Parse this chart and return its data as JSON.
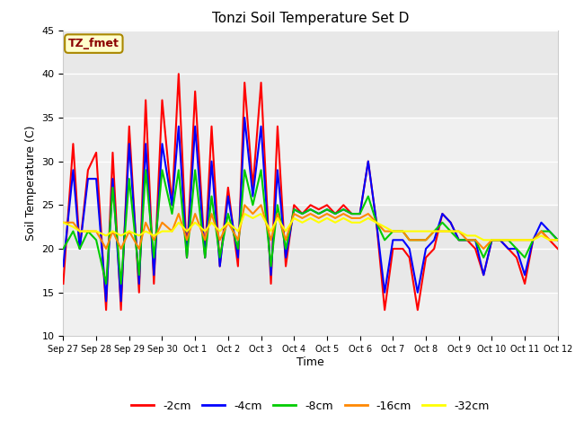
{
  "title": "Tonzi Soil Temperature Set D",
  "xlabel": "Time",
  "ylabel": "Soil Temperature (C)",
  "ylim": [
    10,
    45
  ],
  "xlim": [
    0,
    15
  ],
  "fig_bg": "#ffffff",
  "plot_bg": "#f0f0f0",
  "annotation_text": "TZ_fmet",
  "annotation_bg": "#ffffcc",
  "annotation_border": "#aa8800",
  "annotation_text_color": "#8b0000",
  "x_tick_labels": [
    "Sep 27",
    "Sep 28",
    "Sep 29",
    "Sep 30",
    "Oct 1",
    "Oct 2",
    "Oct 3",
    "Oct 4",
    "Oct 5",
    "Oct 6",
    "Oct 7",
    "Oct 8",
    "Oct 9",
    "Oct 10",
    "Oct 11",
    "Oct 12"
  ],
  "grid_color": "#ffffff",
  "series": {
    "-2cm": {
      "color": "#ff0000",
      "lw": 1.5,
      "x": [
        0,
        0.3,
        0.5,
        0.75,
        1.0,
        1.3,
        1.5,
        1.75,
        2.0,
        2.3,
        2.5,
        2.75,
        3.0,
        3.3,
        3.5,
        3.75,
        4.0,
        4.3,
        4.5,
        4.75,
        5.0,
        5.3,
        5.5,
        5.75,
        6.0,
        6.3,
        6.5,
        6.75,
        7.0,
        7.25,
        7.5,
        7.75,
        8.0,
        8.25,
        8.5,
        8.75,
        9.0,
        9.25,
        9.5,
        9.75,
        10.0,
        10.3,
        10.5,
        10.75,
        11.0,
        11.25,
        11.5,
        11.75,
        12.0,
        12.25,
        12.5,
        12.75,
        13.0,
        13.25,
        13.5,
        13.75,
        14.0,
        14.25,
        14.5,
        14.75,
        15.0
      ],
      "y": [
        16,
        32,
        20,
        29,
        31,
        13,
        31,
        13,
        34,
        15,
        37,
        16,
        37,
        25,
        40,
        19,
        38,
        19,
        34,
        18,
        27,
        18,
        39,
        27,
        39,
        16,
        34,
        18,
        25,
        24,
        25,
        24.5,
        25,
        24,
        25,
        24,
        24,
        30,
        23,
        13,
        20,
        20,
        19,
        13,
        19,
        20,
        24,
        23,
        21,
        21,
        20,
        17,
        21,
        21,
        20,
        19,
        16,
        21,
        22,
        21,
        20
      ]
    },
    "-4cm": {
      "color": "#0000ff",
      "lw": 1.5,
      "x": [
        0,
        0.3,
        0.5,
        0.75,
        1.0,
        1.3,
        1.5,
        1.75,
        2.0,
        2.3,
        2.5,
        2.75,
        3.0,
        3.3,
        3.5,
        3.75,
        4.0,
        4.3,
        4.5,
        4.75,
        5.0,
        5.3,
        5.5,
        5.75,
        6.0,
        6.3,
        6.5,
        6.75,
        7.0,
        7.25,
        7.5,
        7.75,
        8.0,
        8.25,
        8.5,
        8.75,
        9.0,
        9.25,
        9.5,
        9.75,
        10.0,
        10.3,
        10.5,
        10.75,
        11.0,
        11.25,
        11.5,
        11.75,
        12.0,
        12.25,
        12.5,
        12.75,
        13.0,
        13.25,
        13.5,
        13.75,
        14.0,
        14.25,
        14.5,
        14.75,
        15.0
      ],
      "y": [
        18,
        29,
        20,
        28,
        28,
        14,
        28,
        14,
        32,
        16,
        32,
        17,
        32,
        25,
        34,
        19,
        34,
        19,
        30,
        18,
        26,
        19,
        35,
        26,
        34,
        17,
        29,
        19,
        24.5,
        24,
        24.5,
        24,
        24.5,
        24,
        24.5,
        24,
        24,
        30,
        23,
        15,
        21,
        21,
        20,
        15,
        20,
        21,
        24,
        23,
        21,
        21,
        21,
        17,
        21,
        21,
        20,
        20,
        17,
        21,
        23,
        22,
        21
      ]
    },
    "-8cm": {
      "color": "#00cc00",
      "lw": 1.5,
      "x": [
        0,
        0.3,
        0.5,
        0.75,
        1.0,
        1.3,
        1.5,
        1.75,
        2.0,
        2.3,
        2.5,
        2.75,
        3.0,
        3.3,
        3.5,
        3.75,
        4.0,
        4.3,
        4.5,
        4.75,
        5.0,
        5.3,
        5.5,
        5.75,
        6.0,
        6.3,
        6.5,
        6.75,
        7.0,
        7.25,
        7.5,
        7.75,
        8.0,
        8.25,
        8.5,
        8.75,
        9.0,
        9.25,
        9.5,
        9.75,
        10.0,
        10.3,
        10.5,
        10.75,
        11.0,
        11.25,
        11.5,
        11.75,
        12.0,
        12.25,
        12.5,
        12.75,
        13.0,
        13.25,
        13.5,
        13.75,
        14.0,
        14.25,
        14.5,
        14.75,
        15.0
      ],
      "y": [
        20,
        22,
        20,
        22,
        21,
        16,
        27,
        16,
        28,
        17,
        29,
        19,
        29,
        24,
        29,
        19,
        29,
        19,
        26,
        19,
        24,
        20,
        29,
        25,
        29,
        18,
        25,
        20,
        24.5,
        24,
        24.5,
        24,
        24.5,
        24,
        24.5,
        24,
        24,
        26,
        23,
        21,
        22,
        22,
        21,
        21,
        21,
        22,
        23,
        22,
        21,
        21,
        21,
        19,
        21,
        21,
        21,
        20,
        19,
        21,
        22,
        22,
        21
      ]
    },
    "-16cm": {
      "color": "#ff8800",
      "lw": 1.5,
      "x": [
        0,
        0.3,
        0.5,
        0.75,
        1.0,
        1.3,
        1.5,
        1.75,
        2.0,
        2.3,
        2.5,
        2.75,
        3.0,
        3.3,
        3.5,
        3.75,
        4.0,
        4.3,
        4.5,
        4.75,
        5.0,
        5.3,
        5.5,
        5.75,
        6.0,
        6.3,
        6.5,
        6.75,
        7.0,
        7.25,
        7.5,
        7.75,
        8.0,
        8.25,
        8.5,
        8.75,
        9.0,
        9.25,
        9.5,
        9.75,
        10.0,
        10.3,
        10.5,
        10.75,
        11.0,
        11.25,
        11.5,
        11.75,
        12.0,
        12.25,
        12.5,
        12.75,
        13.0,
        13.25,
        13.5,
        13.75,
        14.0,
        14.25,
        14.5,
        14.75,
        15.0
      ],
      "y": [
        23,
        23,
        22,
        22,
        22,
        20,
        22,
        20,
        22,
        20,
        23,
        21,
        23,
        22,
        24,
        21,
        24,
        21,
        24,
        21,
        23,
        21,
        25,
        24,
        25,
        21,
        24,
        21,
        24,
        23.5,
        24,
        23.5,
        24,
        23.5,
        24,
        23.5,
        23.5,
        24,
        23,
        22,
        22,
        22,
        21,
        21,
        21,
        22,
        22,
        22,
        22,
        21,
        21,
        20,
        21,
        21,
        21,
        21,
        21,
        21,
        22,
        21,
        21
      ]
    },
    "-32cm": {
      "color": "#ffff00",
      "lw": 1.5,
      "x": [
        0,
        0.3,
        0.5,
        0.75,
        1.0,
        1.3,
        1.5,
        1.75,
        2.0,
        2.3,
        2.5,
        2.75,
        3.0,
        3.3,
        3.5,
        3.75,
        4.0,
        4.3,
        4.5,
        4.75,
        5.0,
        5.3,
        5.5,
        5.75,
        6.0,
        6.3,
        6.5,
        6.75,
        7.0,
        7.25,
        7.5,
        7.75,
        8.0,
        8.25,
        8.5,
        8.75,
        9.0,
        9.25,
        9.5,
        9.75,
        10.0,
        10.3,
        10.5,
        10.75,
        11.0,
        11.25,
        11.5,
        11.75,
        12.0,
        12.25,
        12.5,
        12.75,
        13.0,
        13.25,
        13.5,
        13.75,
        14.0,
        14.25,
        14.5,
        14.75,
        15.0
      ],
      "y": [
        23,
        22.5,
        22,
        22,
        22,
        21.5,
        22,
        21.5,
        22,
        21.5,
        22,
        21.5,
        22,
        22,
        23,
        22,
        23,
        22,
        23,
        22,
        23,
        22,
        24,
        23.5,
        24,
        22,
        23.5,
        22,
        23.5,
        23,
        23.5,
        23,
        23.5,
        23,
        23.5,
        23,
        23,
        23.5,
        23,
        22.5,
        22,
        22,
        22,
        22,
        22,
        22,
        22,
        22,
        22,
        21.5,
        21.5,
        21,
        21,
        21,
        21,
        21,
        21,
        21,
        21.5,
        21,
        21
      ]
    }
  },
  "legend_labels": [
    "-2cm",
    "-4cm",
    "-8cm",
    "-16cm",
    "-32cm"
  ],
  "legend_colors": [
    "#ff0000",
    "#0000ff",
    "#00cc00",
    "#ff8800",
    "#ffff00"
  ]
}
